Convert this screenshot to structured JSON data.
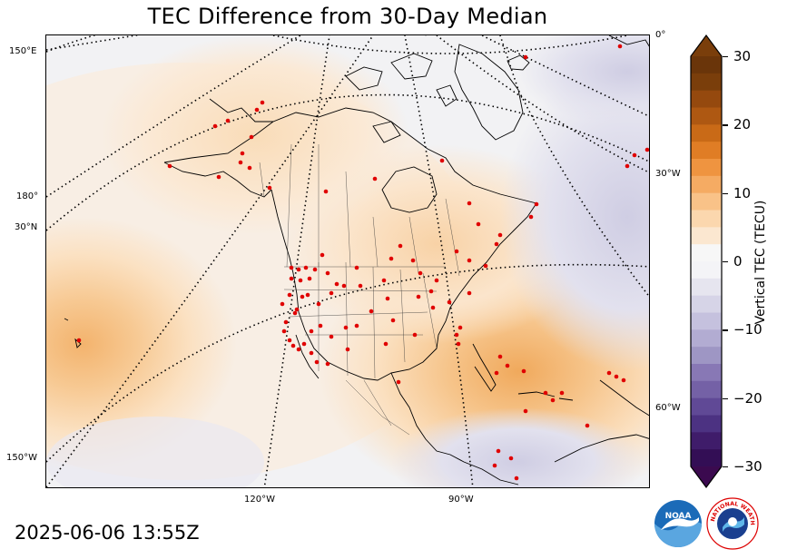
{
  "title": "TEC Difference from 30-Day Median",
  "timestamp": "2025-06-06 13:55Z",
  "colorbar": {
    "label": "Vertical TEC (TECU)",
    "ticks": [
      "30",
      "20",
      "10",
      "0",
      "−10",
      "−20",
      "−30"
    ],
    "min": -30,
    "max": 30,
    "negative_color": "#3b0a4f",
    "zero_color": "#f7f7f7",
    "positive_color": "#7a3e0b"
  },
  "grid_labels": {
    "lon_150e": "150°E",
    "lon_180": "180°",
    "lat_30n": "30°N",
    "lon_150w": "150°W",
    "lon_120w": "120°W",
    "lon_90w": "90°W",
    "lon_0": "0°",
    "lon_30w": "30°W",
    "lon_60w": "60°W"
  },
  "logos": {
    "noaa": "NOAA",
    "nws": "NATIONAL WEATHER SERVICE"
  }
}
